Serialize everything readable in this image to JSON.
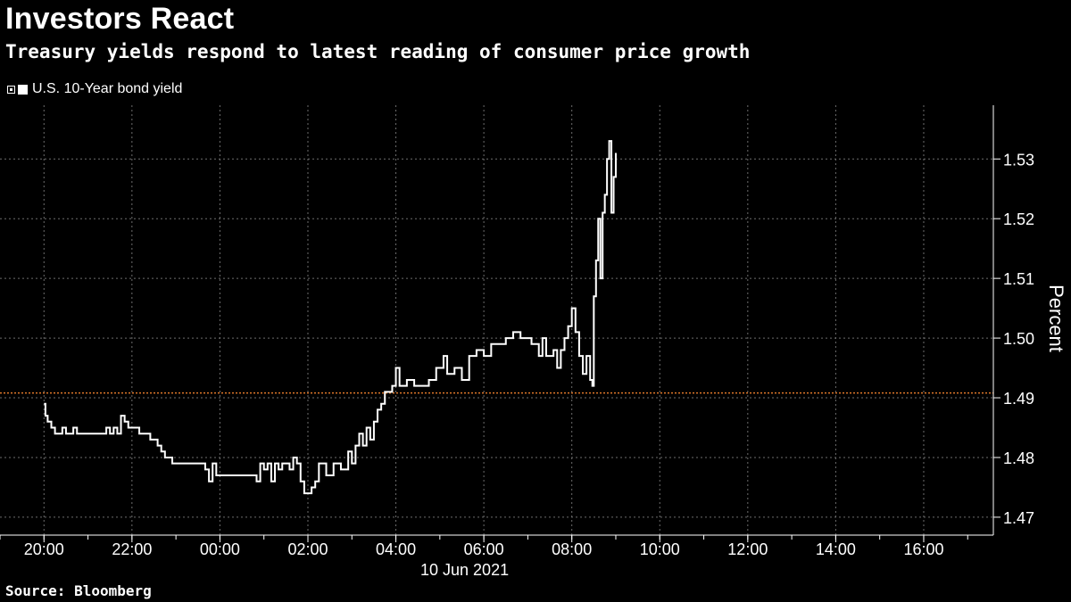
{
  "chart_data": {
    "type": "line",
    "title": "Investors React",
    "subtitle": "Treasury yields respond to latest reading of consumer price growth",
    "legend": [
      {
        "name": "U.S. 10-Year bond yield",
        "color": "#ffffff"
      }
    ],
    "ylabel": "Percent",
    "date_label": "10 Jun 2021",
    "source": "Source: Bloomberg",
    "ylim": [
      1.467,
      1.539
    ],
    "yticks": [
      1.47,
      1.48,
      1.49,
      1.5,
      1.51,
      1.52,
      1.53
    ],
    "ytick_labels": [
      "1.47",
      "1.48",
      "1.49",
      "1.50",
      "1.51",
      "1.52",
      "1.53"
    ],
    "xlim": [
      "2021-06-09T19:00",
      "2021-06-10T17:35"
    ],
    "xticks": [
      "2021-06-09T20:00",
      "2021-06-09T22:00",
      "2021-06-10T00:00",
      "2021-06-10T02:00",
      "2021-06-10T04:00",
      "2021-06-10T06:00",
      "2021-06-10T08:00",
      "2021-06-10T10:00",
      "2021-06-10T12:00",
      "2021-06-10T14:00",
      "2021-06-10T16:00"
    ],
    "xtick_labels": [
      "20:00",
      "22:00",
      "00:00",
      "02:00",
      "04:00",
      "06:00",
      "08:00",
      "10:00",
      "12:00",
      "14:00",
      "16:00"
    ],
    "reference_line": {
      "value": 1.4908,
      "color": "#e0782a",
      "style": "dotted"
    },
    "grid": true,
    "series": [
      {
        "name": "U.S. 10-Year bond yield",
        "color": "#ffffff",
        "points": [
          [
            "2021-06-09T20:00",
            1.489
          ],
          [
            "2021-06-09T20:02",
            1.487
          ],
          [
            "2021-06-09T20:05",
            1.486
          ],
          [
            "2021-06-09T20:10",
            1.485
          ],
          [
            "2021-06-09T20:15",
            1.484
          ],
          [
            "2021-06-09T20:25",
            1.485
          ],
          [
            "2021-06-09T20:30",
            1.484
          ],
          [
            "2021-06-09T20:40",
            1.485
          ],
          [
            "2021-06-09T20:45",
            1.484
          ],
          [
            "2021-06-09T21:00",
            1.484
          ],
          [
            "2021-06-09T21:20",
            1.484
          ],
          [
            "2021-06-09T21:25",
            1.485
          ],
          [
            "2021-06-09T21:30",
            1.484
          ],
          [
            "2021-06-09T21:35",
            1.485
          ],
          [
            "2021-06-09T21:40",
            1.484
          ],
          [
            "2021-06-09T21:45",
            1.487
          ],
          [
            "2021-06-09T21:50",
            1.486
          ],
          [
            "2021-06-09T21:55",
            1.485
          ],
          [
            "2021-06-09T22:10",
            1.484
          ],
          [
            "2021-06-09T22:25",
            1.483
          ],
          [
            "2021-06-09T22:35",
            1.482
          ],
          [
            "2021-06-09T22:40",
            1.481
          ],
          [
            "2021-06-09T22:45",
            1.48
          ],
          [
            "2021-06-09T22:55",
            1.479
          ],
          [
            "2021-06-09T23:10",
            1.479
          ],
          [
            "2021-06-09T23:30",
            1.479
          ],
          [
            "2021-06-09T23:40",
            1.478
          ],
          [
            "2021-06-09T23:45",
            1.476
          ],
          [
            "2021-06-09T23:50",
            1.479
          ],
          [
            "2021-06-09T23:55",
            1.477
          ],
          [
            "2021-06-10T00:30",
            1.477
          ],
          [
            "2021-06-10T00:45",
            1.477
          ],
          [
            "2021-06-10T00:50",
            1.476
          ],
          [
            "2021-06-10T00:55",
            1.479
          ],
          [
            "2021-06-10T01:00",
            1.478
          ],
          [
            "2021-06-10T01:05",
            1.479
          ],
          [
            "2021-06-10T01:10",
            1.476
          ],
          [
            "2021-06-10T01:15",
            1.479
          ],
          [
            "2021-06-10T01:20",
            1.478
          ],
          [
            "2021-06-10T01:25",
            1.479
          ],
          [
            "2021-06-10T01:35",
            1.478
          ],
          [
            "2021-06-10T01:40",
            1.48
          ],
          [
            "2021-06-10T01:45",
            1.479
          ],
          [
            "2021-06-10T01:50",
            1.476
          ],
          [
            "2021-06-10T01:55",
            1.474
          ],
          [
            "2021-06-10T02:00",
            1.474
          ],
          [
            "2021-06-10T02:05",
            1.475
          ],
          [
            "2021-06-10T02:10",
            1.476
          ],
          [
            "2021-06-10T02:15",
            1.479
          ],
          [
            "2021-06-10T02:25",
            1.477
          ],
          [
            "2021-06-10T02:35",
            1.479
          ],
          [
            "2021-06-10T02:45",
            1.478
          ],
          [
            "2021-06-10T02:55",
            1.481
          ],
          [
            "2021-06-10T03:00",
            1.479
          ],
          [
            "2021-06-10T03:05",
            1.482
          ],
          [
            "2021-06-10T03:10",
            1.484
          ],
          [
            "2021-06-10T03:15",
            1.482
          ],
          [
            "2021-06-10T03:20",
            1.485
          ],
          [
            "2021-06-10T03:25",
            1.483
          ],
          [
            "2021-06-10T03:30",
            1.486
          ],
          [
            "2021-06-10T03:35",
            1.488
          ],
          [
            "2021-06-10T03:40",
            1.489
          ],
          [
            "2021-06-10T03:45",
            1.491
          ],
          [
            "2021-06-10T03:55",
            1.492
          ],
          [
            "2021-06-10T04:00",
            1.495
          ],
          [
            "2021-06-10T04:05",
            1.492
          ],
          [
            "2021-06-10T04:15",
            1.493
          ],
          [
            "2021-06-10T04:25",
            1.492
          ],
          [
            "2021-06-10T04:45",
            1.493
          ],
          [
            "2021-06-10T04:55",
            1.495
          ],
          [
            "2021-06-10T05:05",
            1.497
          ],
          [
            "2021-06-10T05:10",
            1.494
          ],
          [
            "2021-06-10T05:20",
            1.495
          ],
          [
            "2021-06-10T05:30",
            1.493
          ],
          [
            "2021-06-10T05:40",
            1.497
          ],
          [
            "2021-06-10T05:50",
            1.498
          ],
          [
            "2021-06-10T06:00",
            1.497
          ],
          [
            "2021-06-10T06:10",
            1.499
          ],
          [
            "2021-06-10T06:25",
            1.499
          ],
          [
            "2021-06-10T06:30",
            1.5
          ],
          [
            "2021-06-10T06:40",
            1.501
          ],
          [
            "2021-06-10T06:50",
            1.5
          ],
          [
            "2021-06-10T07:05",
            1.499
          ],
          [
            "2021-06-10T07:15",
            1.497
          ],
          [
            "2021-06-10T07:20",
            1.5
          ],
          [
            "2021-06-10T07:25",
            1.497
          ],
          [
            "2021-06-10T07:35",
            1.498
          ],
          [
            "2021-06-10T07:40",
            1.495
          ],
          [
            "2021-06-10T07:45",
            1.498
          ],
          [
            "2021-06-10T07:50",
            1.5
          ],
          [
            "2021-06-10T07:55",
            1.502
          ],
          [
            "2021-06-10T08:00",
            1.505
          ],
          [
            "2021-06-10T08:05",
            1.501
          ],
          [
            "2021-06-10T08:10",
            1.497
          ],
          [
            "2021-06-10T08:15",
            1.494
          ],
          [
            "2021-06-10T08:20",
            1.497
          ],
          [
            "2021-06-10T08:25",
            1.493
          ],
          [
            "2021-06-10T08:28",
            1.492
          ],
          [
            "2021-06-10T08:30",
            1.507
          ],
          [
            "2021-06-10T08:33",
            1.513
          ],
          [
            "2021-06-10T08:36",
            1.52
          ],
          [
            "2021-06-10T08:39",
            1.51
          ],
          [
            "2021-06-10T08:42",
            1.521
          ],
          [
            "2021-06-10T08:45",
            1.524
          ],
          [
            "2021-06-10T08:48",
            1.53
          ],
          [
            "2021-06-10T08:51",
            1.533
          ],
          [
            "2021-06-10T08:54",
            1.521
          ],
          [
            "2021-06-10T08:57",
            1.527
          ],
          [
            "2021-06-10T09:00",
            1.531
          ]
        ]
      }
    ]
  }
}
